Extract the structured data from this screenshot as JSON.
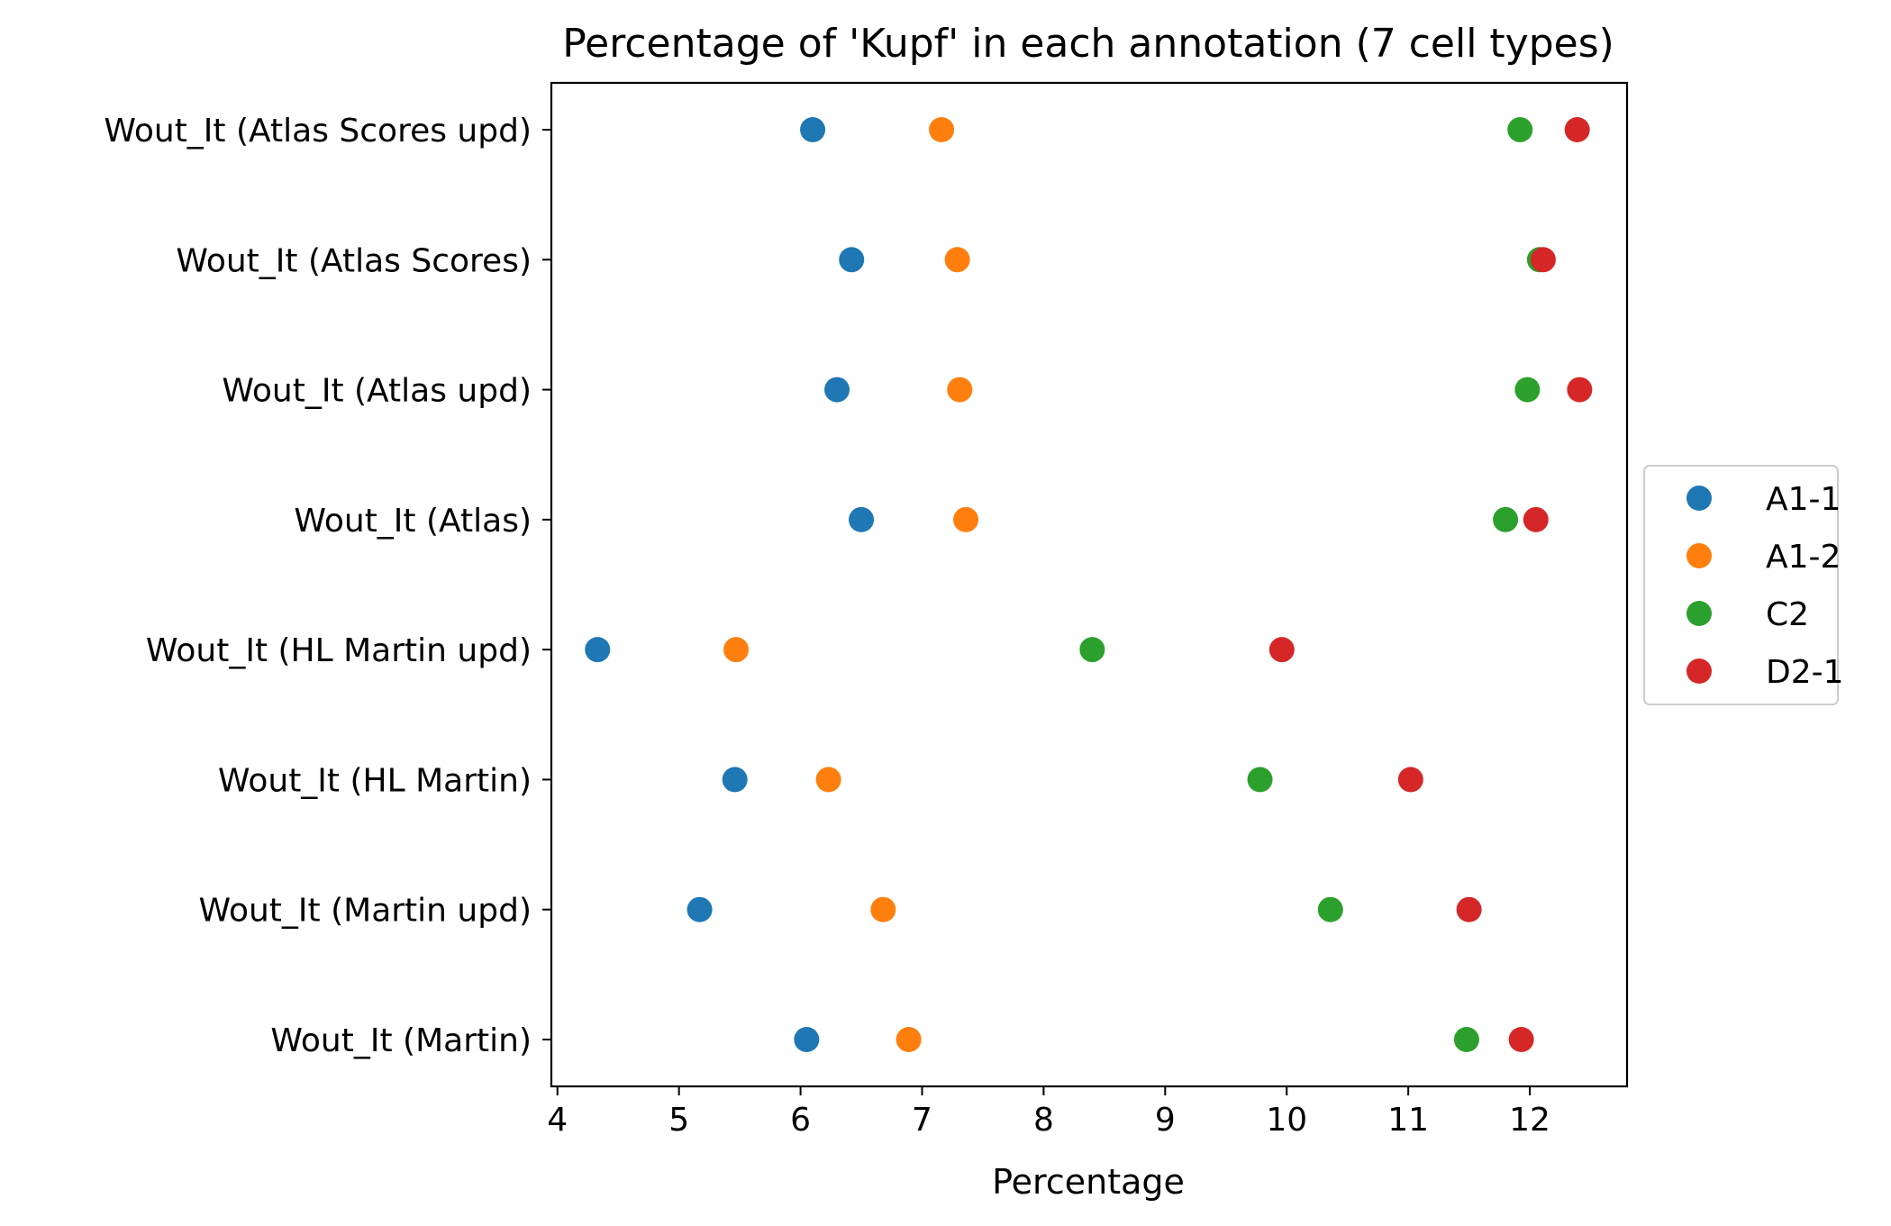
{
  "chart_data": {
    "type": "scatter",
    "title": "Percentage of 'Kupf' in each annotation (7 cell types)",
    "xlabel": "Percentage",
    "ylabel": "",
    "xlim": [
      3.95,
      12.8
    ],
    "xticks": [
      4,
      5,
      6,
      7,
      8,
      9,
      10,
      11,
      12
    ],
    "grid": false,
    "legend_position": "center right, outside plot",
    "categories": [
      "Wout_It (Atlas Scores upd)",
      "Wout_It (Atlas Scores)",
      "Wout_It (Atlas upd)",
      "Wout_It (Atlas)",
      "Wout_It (HL Martin upd)",
      "Wout_It (HL Martin)",
      "Wout_It (Martin upd)",
      "Wout_It (Martin)"
    ],
    "series": [
      {
        "name": "A1-1",
        "color": "#1f77b4",
        "values": [
          6.1,
          6.42,
          6.3,
          6.5,
          4.33,
          5.46,
          5.17,
          6.05
        ]
      },
      {
        "name": "A1-2",
        "color": "#ff7f0e",
        "values": [
          7.16,
          7.29,
          7.31,
          7.36,
          5.47,
          6.23,
          6.68,
          6.89
        ]
      },
      {
        "name": "C2",
        "color": "#2ca02c",
        "values": [
          11.92,
          12.08,
          11.98,
          11.8,
          8.4,
          9.78,
          10.36,
          11.48
        ]
      },
      {
        "name": "D2-1",
        "color": "#d62728",
        "values": [
          12.39,
          12.11,
          12.41,
          12.05,
          9.96,
          11.02,
          11.5,
          11.93
        ]
      }
    ]
  }
}
